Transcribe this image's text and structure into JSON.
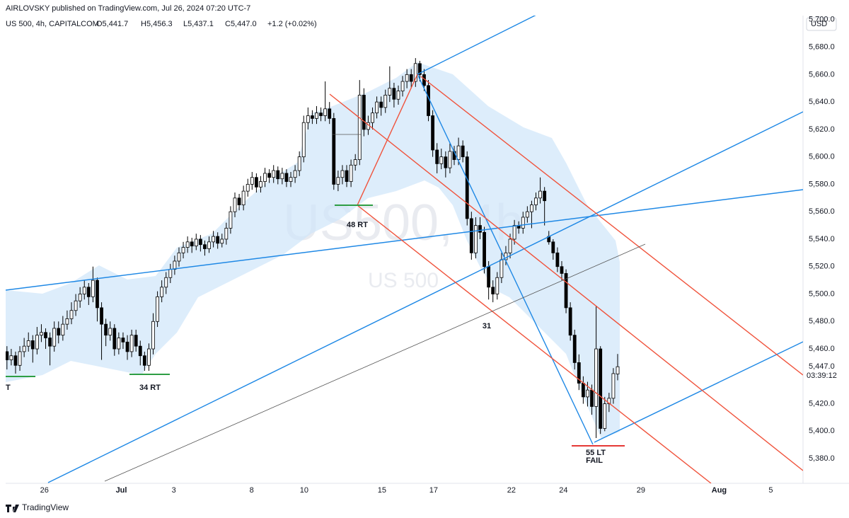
{
  "header": {
    "published": "AIRLOVSKY published on TradingView.com, Jul 26, 2024 07:20 UTC-7"
  },
  "chart_data": {
    "type": "candlestick",
    "title": "US 500, 4h, CAPITALCOM",
    "legend": {
      "open": "O5,441.7",
      "high": "H5,456.3",
      "low": "L5,437.1",
      "close": "C5,447.0",
      "change": "+1.2 (+0.02%)"
    },
    "watermark": "US500, 4h",
    "watermark_sub": "US 500",
    "currency": "USD",
    "up_color": "#ffffff",
    "down_color": "#000000",
    "border_color": "#000000",
    "ohlc": [
      [
        5458,
        5462,
        5445,
        5452
      ],
      [
        5452,
        5460,
        5448,
        5455
      ],
      [
        5455,
        5458,
        5442,
        5448
      ],
      [
        5448,
        5462,
        5444,
        5458
      ],
      [
        5458,
        5468,
        5454,
        5462
      ],
      [
        5462,
        5472,
        5458,
        5466
      ],
      [
        5466,
        5470,
        5450,
        5460
      ],
      [
        5460,
        5476,
        5456,
        5470
      ],
      [
        5470,
        5478,
        5465,
        5472
      ],
      [
        5472,
        5475,
        5460,
        5468
      ],
      [
        5468,
        5472,
        5448,
        5462
      ],
      [
        5462,
        5480,
        5458,
        5475
      ],
      [
        5475,
        5480,
        5464,
        5470
      ],
      [
        5470,
        5484,
        5466,
        5478
      ],
      [
        5478,
        5488,
        5474,
        5482
      ],
      [
        5482,
        5494,
        5478,
        5488
      ],
      [
        5488,
        5500,
        5484,
        5495
      ],
      [
        5495,
        5505,
        5490,
        5500
      ],
      [
        5500,
        5510,
        5496,
        5505
      ],
      [
        5505,
        5508,
        5492,
        5498
      ],
      [
        5498,
        5520,
        5494,
        5510
      ],
      [
        5510,
        5512,
        5480,
        5490
      ],
      [
        5490,
        5494,
        5452,
        5478
      ],
      [
        5478,
        5482,
        5462,
        5470
      ],
      [
        5470,
        5480,
        5466,
        5475
      ],
      [
        5475,
        5478,
        5455,
        5460
      ],
      [
        5460,
        5472,
        5456,
        5468
      ],
      [
        5468,
        5472,
        5460,
        5465
      ],
      [
        5465,
        5470,
        5452,
        5458
      ],
      [
        5458,
        5474,
        5454,
        5470
      ],
      [
        5470,
        5474,
        5458,
        5462
      ],
      [
        5462,
        5466,
        5448,
        5455
      ],
      [
        5455,
        5458,
        5444,
        5448
      ],
      [
        5448,
        5464,
        5444,
        5460
      ],
      [
        5460,
        5486,
        5456,
        5480
      ],
      [
        5480,
        5502,
        5476,
        5498
      ],
      [
        5498,
        5510,
        5494,
        5505
      ],
      [
        5505,
        5516,
        5500,
        5512
      ],
      [
        5512,
        5522,
        5508,
        5518
      ],
      [
        5518,
        5528,
        5514,
        5524
      ],
      [
        5524,
        5534,
        5520,
        5530
      ],
      [
        5530,
        5538,
        5526,
        5534
      ],
      [
        5534,
        5542,
        5530,
        5538
      ],
      [
        5538,
        5541,
        5530,
        5535
      ],
      [
        5535,
        5544,
        5532,
        5540
      ],
      [
        5540,
        5543,
        5531,
        5536
      ],
      [
        5536,
        5539,
        5528,
        5533
      ],
      [
        5533,
        5542,
        5530,
        5538
      ],
      [
        5538,
        5546,
        5534,
        5542
      ],
      [
        5542,
        5545,
        5533,
        5537
      ],
      [
        5537,
        5544,
        5534,
        5540
      ],
      [
        5540,
        5552,
        5536,
        5548
      ],
      [
        5548,
        5564,
        5544,
        5560
      ],
      [
        5560,
        5574,
        5556,
        5570
      ],
      [
        5570,
        5573,
        5561,
        5565
      ],
      [
        5565,
        5579,
        5561,
        5575
      ],
      [
        5575,
        5584,
        5571,
        5580
      ],
      [
        5580,
        5589,
        5576,
        5585
      ],
      [
        5585,
        5588,
        5574,
        5578
      ],
      [
        5578,
        5586,
        5574,
        5582
      ],
      [
        5582,
        5592,
        5578,
        5588
      ],
      [
        5588,
        5591,
        5581,
        5585
      ],
      [
        5585,
        5594,
        5581,
        5590
      ],
      [
        5590,
        5593,
        5580,
        5584
      ],
      [
        5584,
        5592,
        5580,
        5588
      ],
      [
        5588,
        5591,
        5578,
        5582
      ],
      [
        5582,
        5589,
        5578,
        5585
      ],
      [
        5585,
        5594,
        5581,
        5590
      ],
      [
        5590,
        5604,
        5586,
        5600
      ],
      [
        5600,
        5630,
        5596,
        5625
      ],
      [
        5625,
        5636,
        5620,
        5630
      ],
      [
        5630,
        5634,
        5624,
        5628
      ],
      [
        5628,
        5637,
        5624,
        5632
      ],
      [
        5632,
        5636,
        5626,
        5630
      ],
      [
        5630,
        5655,
        5626,
        5635
      ],
      [
        5635,
        5640,
        5624,
        5628
      ],
      [
        5628,
        5632,
        5576,
        5580
      ],
      [
        5580,
        5590,
        5575,
        5585
      ],
      [
        5585,
        5594,
        5580,
        5590
      ],
      [
        5590,
        5594,
        5578,
        5582
      ],
      [
        5582,
        5598,
        5578,
        5594
      ],
      [
        5594,
        5602,
        5590,
        5598
      ],
      [
        5598,
        5656,
        5594,
        5645
      ],
      [
        5645,
        5650,
        5615,
        5620
      ],
      [
        5620,
        5630,
        5616,
        5625
      ],
      [
        5625,
        5636,
        5620,
        5632
      ],
      [
        5632,
        5644,
        5628,
        5640
      ],
      [
        5640,
        5644,
        5630,
        5636
      ],
      [
        5636,
        5649,
        5632,
        5645
      ],
      [
        5645,
        5666,
        5640,
        5650
      ],
      [
        5650,
        5654,
        5636,
        5642
      ],
      [
        5642,
        5652,
        5638,
        5648
      ],
      [
        5648,
        5659,
        5644,
        5655
      ],
      [
        5655,
        5664,
        5650,
        5660
      ],
      [
        5660,
        5664,
        5650,
        5655
      ],
      [
        5655,
        5672,
        5651,
        5668
      ],
      [
        5668,
        5670,
        5655,
        5660
      ],
      [
        5660,
        5664,
        5648,
        5652
      ],
      [
        5652,
        5656,
        5626,
        5630
      ],
      [
        5630,
        5634,
        5600,
        5605
      ],
      [
        5605,
        5610,
        5588,
        5595
      ],
      [
        5595,
        5606,
        5591,
        5600
      ],
      [
        5600,
        5604,
        5585,
        5592
      ],
      [
        5592,
        5610,
        5588,
        5604
      ],
      [
        5604,
        5608,
        5594,
        5598
      ],
      [
        5598,
        5614,
        5594,
        5608
      ],
      [
        5608,
        5612,
        5596,
        5600
      ],
      [
        5600,
        5604,
        5550,
        5555
      ],
      [
        5555,
        5560,
        5525,
        5530
      ],
      [
        5530,
        5556,
        5526,
        5550
      ],
      [
        5550,
        5556,
        5540,
        5545
      ],
      [
        5545,
        5549,
        5515,
        5520
      ],
      [
        5520,
        5524,
        5496,
        5505
      ],
      [
        5505,
        5510,
        5494,
        5500
      ],
      [
        5500,
        5516,
        5496,
        5512
      ],
      [
        5512,
        5530,
        5508,
        5525
      ],
      [
        5525,
        5535,
        5521,
        5530
      ],
      [
        5530,
        5544,
        5526,
        5540
      ],
      [
        5540,
        5554,
        5536,
        5550
      ],
      [
        5550,
        5553,
        5544,
        5548
      ],
      [
        5548,
        5560,
        5544,
        5556
      ],
      [
        5556,
        5564,
        5552,
        5560
      ],
      [
        5560,
        5568,
        5548,
        5565
      ],
      [
        5565,
        5574,
        5561,
        5570
      ],
      [
        5570,
        5585,
        5566,
        5575
      ],
      [
        5575,
        5578,
        5550,
        5568
      ],
      [
        5542,
        5546,
        5536,
        5538
      ],
      [
        5538,
        5540,
        5525,
        5530
      ],
      [
        5530,
        5534,
        5516,
        5520
      ],
      [
        5520,
        5524,
        5510,
        5515
      ],
      [
        5515,
        5518,
        5486,
        5490
      ],
      [
        5490,
        5494,
        5466,
        5470
      ],
      [
        5470,
        5474,
        5445,
        5450
      ],
      [
        5450,
        5456,
        5430,
        5435
      ],
      [
        5435,
        5440,
        5420,
        5425
      ],
      [
        5425,
        5436,
        5418,
        5430
      ],
      [
        5430,
        5434,
        5412,
        5418
      ],
      [
        5418,
        5491,
        5395,
        5460
      ],
      [
        5460,
        5462,
        5398,
        5402
      ],
      [
        5402,
        5425,
        5400,
        5420
      ],
      [
        5420,
        5428,
        5414,
        5424
      ],
      [
        5424,
        5446,
        5420,
        5442
      ],
      [
        5441.7,
        5456.3,
        5437.1,
        5447.0
      ]
    ],
    "xlim": [
      -0.3,
      185.1
    ],
    "xticks": [
      {
        "value": 8.7,
        "label": "26"
      },
      {
        "value": 26.6,
        "label": "Jul"
      },
      {
        "value": 38.8,
        "label": "3"
      },
      {
        "value": 56.9,
        "label": "8"
      },
      {
        "value": 69.1,
        "label": "10"
      },
      {
        "value": 87.2,
        "label": "15"
      },
      {
        "value": 99.2,
        "label": "17"
      },
      {
        "value": 117.3,
        "label": "22"
      },
      {
        "value": 129.4,
        "label": "24"
      },
      {
        "value": 147.4,
        "label": "29"
      },
      {
        "value": 165.6,
        "label": "Aug"
      },
      {
        "value": 177.6,
        "label": "5"
      }
    ],
    "ylim": [
      5362,
      5703
    ],
    "yticks": [
      {
        "value": 5380,
        "label": "5,380.0"
      },
      {
        "value": 5400,
        "label": "5,400.0"
      },
      {
        "value": 5420,
        "label": "5,420.0"
      },
      {
        "value": 5460,
        "label": "5,460.0"
      },
      {
        "value": 5480,
        "label": "5,480.0"
      },
      {
        "value": 5500,
        "label": "5,500.0"
      },
      {
        "value": 5520,
        "label": "5,520.0"
      },
      {
        "value": 5540,
        "label": "5,540.0"
      },
      {
        "value": 5560,
        "label": "5,560.0"
      },
      {
        "value": 5580,
        "label": "5,580.0"
      },
      {
        "value": 5600,
        "label": "5,600.0"
      },
      {
        "value": 5620,
        "label": "5,620.0"
      },
      {
        "value": 5640,
        "label": "5,640.0"
      },
      {
        "value": 5660,
        "label": "5,660.0"
      },
      {
        "value": 5680,
        "label": "5,680.0"
      },
      {
        "value": 5700,
        "label": "5,700.0"
      }
    ],
    "last_price": {
      "value": 5447.0,
      "label": "5,447.0"
    },
    "countdown": "03:39:12",
    "annotations": [
      "48 RT",
      "34 RT",
      "31",
      "55 LT",
      "FAIL",
      "T"
    ]
  },
  "footer": "TradingView"
}
